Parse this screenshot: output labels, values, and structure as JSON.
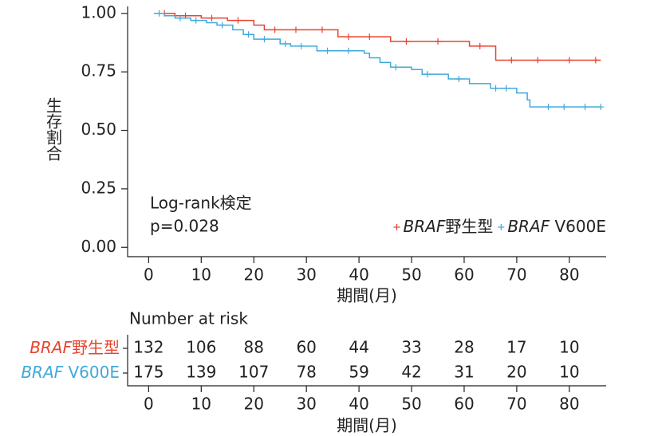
{
  "chart_data": {
    "type": "kaplan-meier",
    "ylabel": "生存割合",
    "xlabel": "期間(月)",
    "xlim": [
      -4,
      87
    ],
    "ylim": [
      -0.04,
      1.03
    ],
    "xticks": [
      0,
      10,
      20,
      30,
      40,
      50,
      60,
      70,
      80
    ],
    "yticks": [
      {
        "value": 0,
        "label": "0.00"
      },
      {
        "value": 0.25,
        "label": "0.25"
      },
      {
        "value": 0.5,
        "label": "0.50"
      },
      {
        "value": 0.75,
        "label": "0.75"
      },
      {
        "value": 1,
        "label": "1.00"
      }
    ],
    "annotations": [
      "Log-rank検定",
      "p=0.028"
    ],
    "legend": "lower right",
    "series": [
      {
        "name": "BRAF野生型",
        "color": "#e8432e",
        "x": [
          1,
          5,
          10,
          15,
          20,
          22,
          36,
          46,
          61,
          66,
          86
        ],
        "values": [
          1.0,
          0.99,
          0.98,
          0.97,
          0.95,
          0.93,
          0.9,
          0.88,
          0.86,
          0.8,
          0.8
        ],
        "censor_x": [
          3,
          7,
          12,
          17,
          24,
          28,
          33,
          38,
          42,
          49,
          55,
          63,
          69,
          74,
          80,
          85
        ],
        "censor_y": [
          1.0,
          0.99,
          0.98,
          0.97,
          0.93,
          0.93,
          0.93,
          0.9,
          0.9,
          0.88,
          0.88,
          0.86,
          0.8,
          0.8,
          0.8,
          0.8
        ]
      },
      {
        "name": "BRAF V600E",
        "color": "#3fa9dc",
        "x": [
          1,
          3,
          5,
          8,
          11,
          13,
          16,
          18,
          20,
          25,
          27,
          32,
          41,
          42,
          44,
          46,
          50,
          52,
          57,
          61,
          65,
          70,
          72,
          72.5,
          86
        ],
        "values": [
          1.0,
          0.99,
          0.98,
          0.97,
          0.96,
          0.95,
          0.93,
          0.91,
          0.89,
          0.87,
          0.86,
          0.84,
          0.83,
          0.81,
          0.79,
          0.77,
          0.76,
          0.74,
          0.72,
          0.7,
          0.68,
          0.66,
          0.63,
          0.6,
          0.6
        ],
        "censor_x": [
          2,
          6,
          9,
          14,
          19,
          22,
          26,
          29,
          34,
          38,
          47,
          53,
          59,
          66,
          68,
          76,
          79,
          83,
          86
        ],
        "censor_y": [
          1.0,
          0.98,
          0.97,
          0.95,
          0.91,
          0.89,
          0.87,
          0.86,
          0.84,
          0.84,
          0.77,
          0.74,
          0.72,
          0.68,
          0.68,
          0.6,
          0.6,
          0.6,
          0.6
        ]
      }
    ],
    "risk_table": {
      "title": "Number at risk",
      "rows": [
        {
          "name": "BRAF野生型",
          "color": "#e8432e",
          "values": [
            132,
            106,
            88,
            60,
            44,
            33,
            28,
            17,
            10
          ]
        },
        {
          "name": "BRAF V600E",
          "color": "#3fa9dc",
          "values": [
            175,
            139,
            107,
            78,
            59,
            42,
            31,
            20,
            10
          ]
        }
      ]
    }
  }
}
